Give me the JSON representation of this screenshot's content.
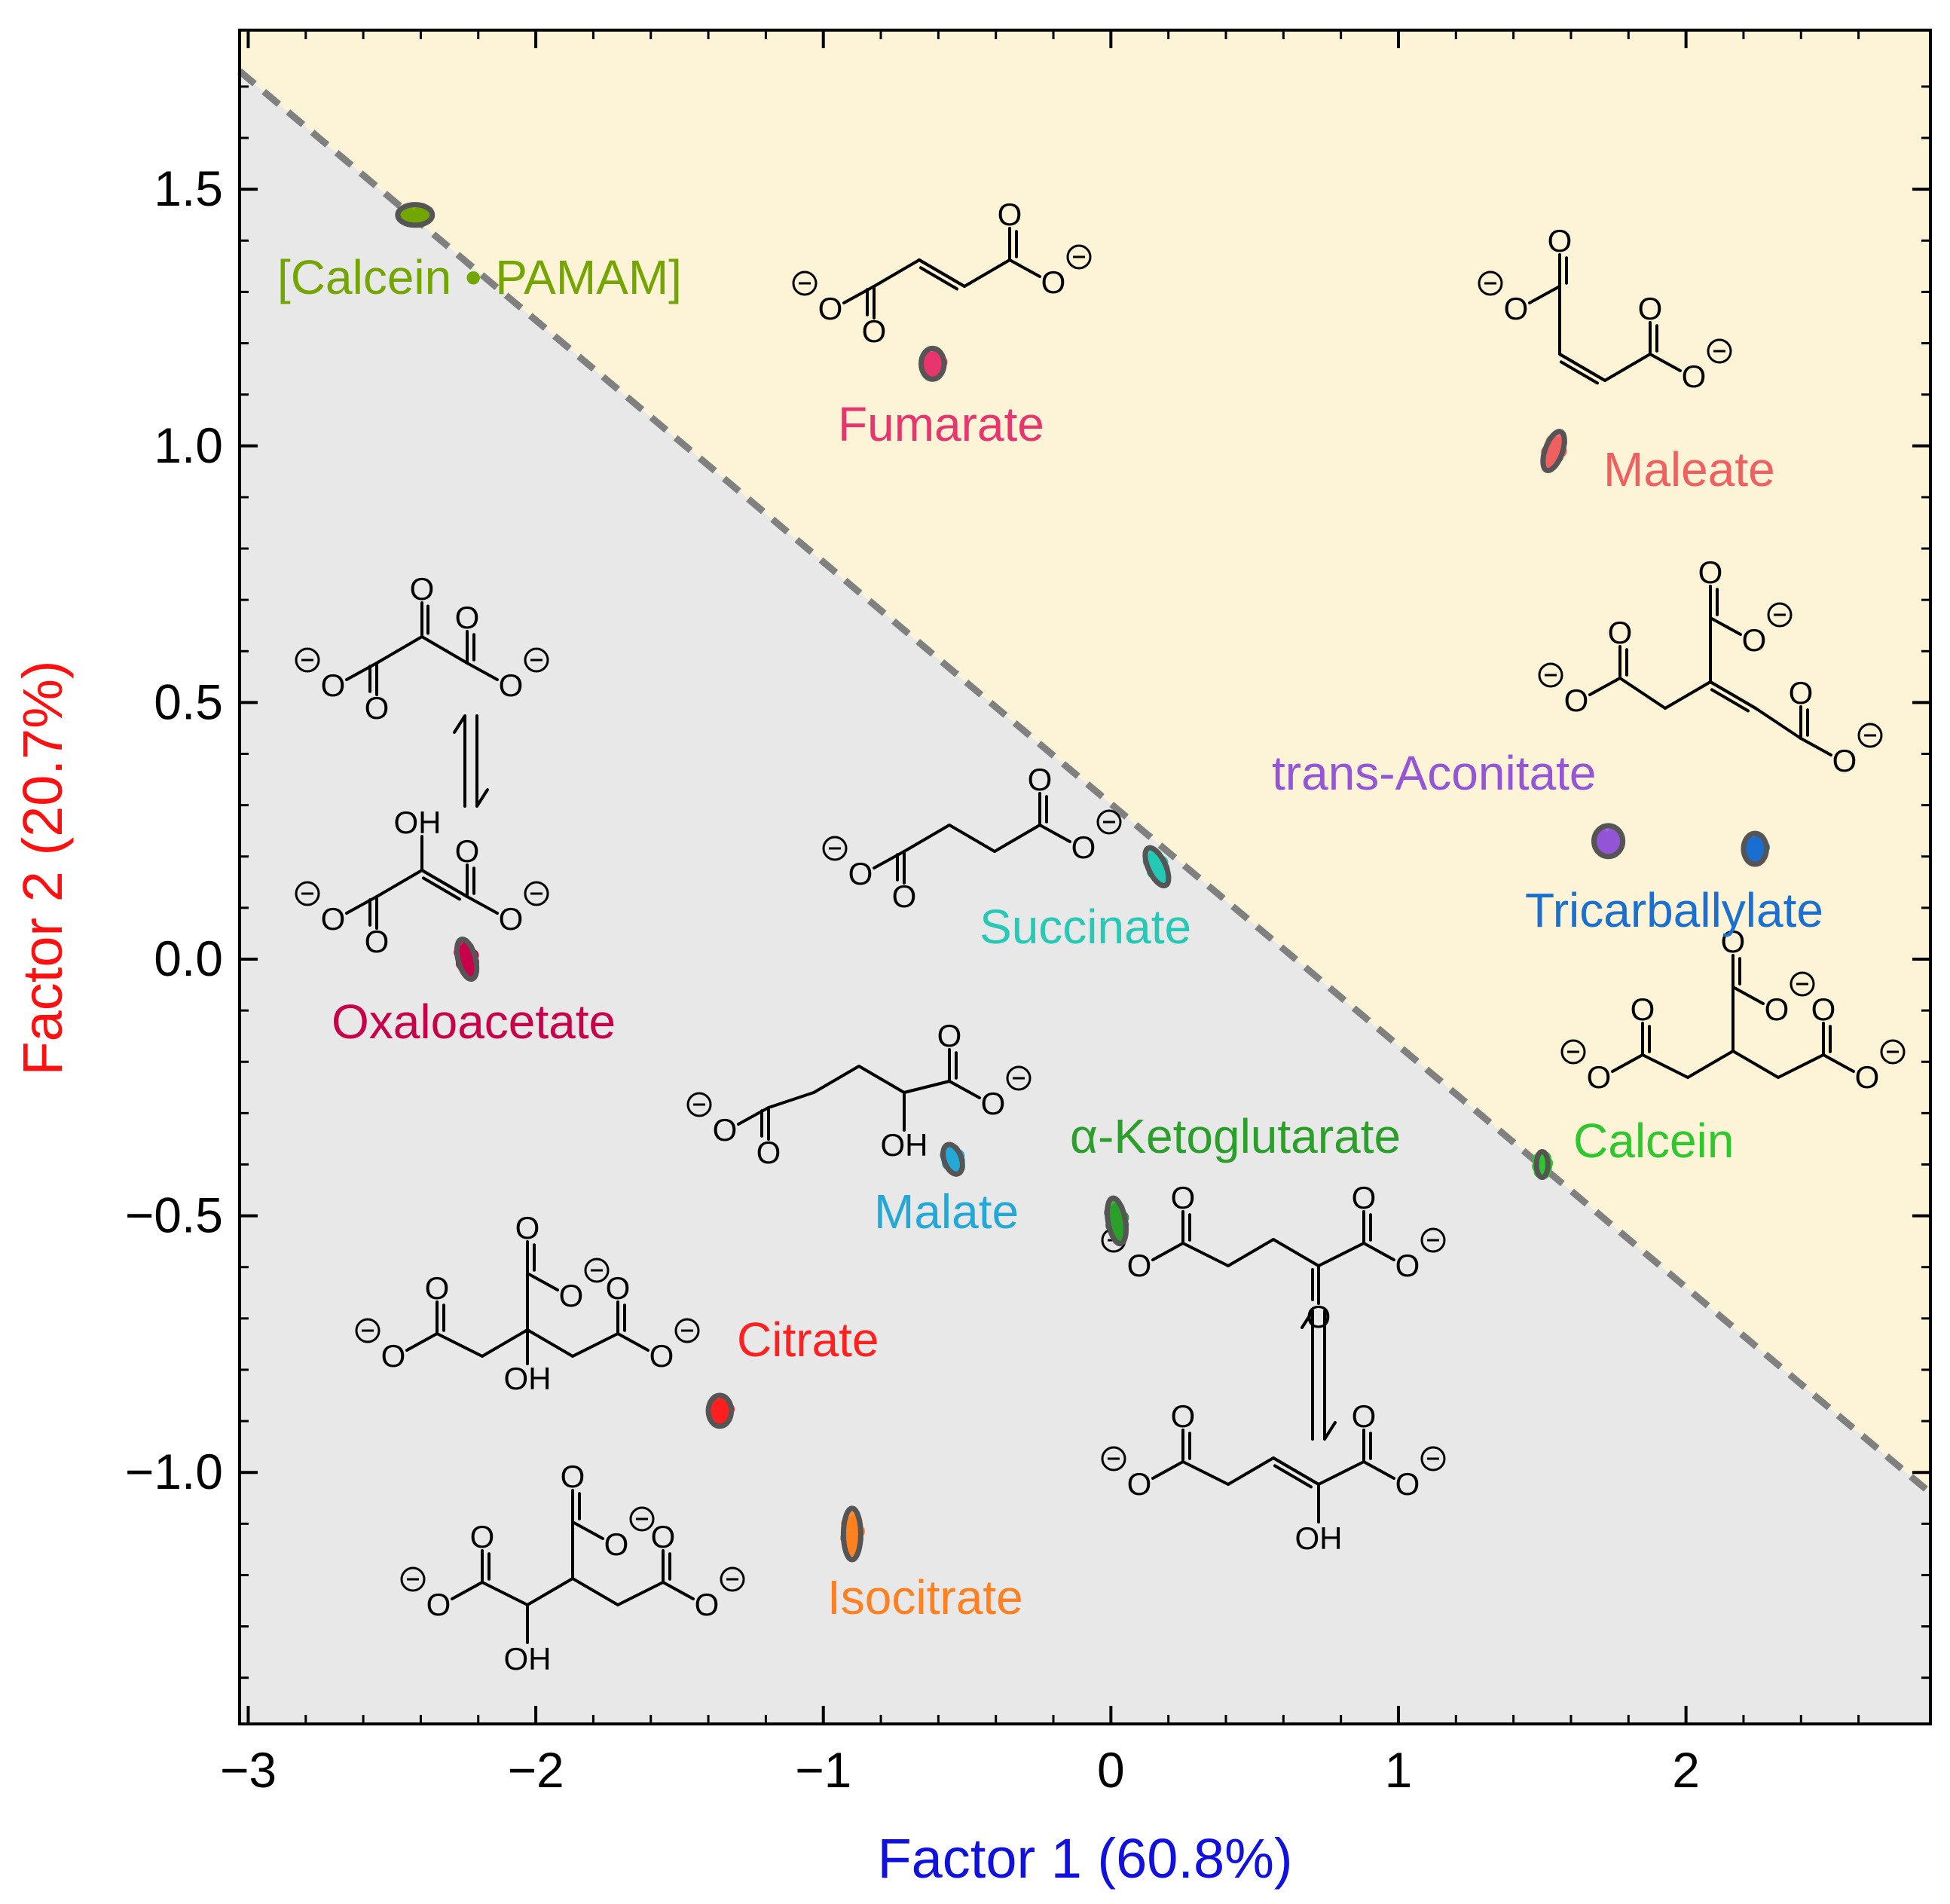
{
  "chart_data": {
    "type": "scatter",
    "xlabel": "Factor 1 (60.8%)",
    "ylabel": "Factor 2 (20.7%)",
    "xlabel_color": "#1010e0",
    "ylabel_color": "#ff1010",
    "xlim": [
      -3.03,
      2.85
    ],
    "ylim": [
      -1.49,
      1.81
    ],
    "x_ticks": [
      -3,
      -2,
      -1,
      0,
      1,
      2
    ],
    "x_tick_labels": [
      "−3",
      "−2",
      "−1",
      "0",
      "1",
      "2"
    ],
    "y_ticks": [
      -1.0,
      -0.5,
      0.0,
      0.5,
      1.0,
      1.5
    ],
    "y_tick_labels": [
      "−1.0",
      "−0.5",
      "0.0",
      "0.5",
      "1.0",
      "1.5"
    ],
    "grid": false,
    "legend": "none",
    "region_colors": {
      "upper": "#fdf3d6",
      "lower": "#e8e8e8",
      "boundary": "#808080"
    },
    "boundary_line": [
      [
        -3.03,
        1.73
      ],
      [
        2.85,
        -1.04
      ]
    ],
    "series": [
      {
        "name": "[Calcein • PAMAM]",
        "color": "#73a600",
        "x": -2.42,
        "y": 1.45,
        "rx": 0.06,
        "ry": 0.02,
        "tilt": 0
      },
      {
        "name": "Fumarate",
        "color": "#e8356e",
        "x": -0.62,
        "y": 1.16,
        "rx": 0.04,
        "ry": 0.03,
        "tilt": 0
      },
      {
        "name": "Maleate",
        "color": "#f06060",
        "x": 1.54,
        "y": 0.99,
        "rx": 0.03,
        "ry": 0.04,
        "tilt": 20
      },
      {
        "name": "trans-Aconitate",
        "color": "#9455d6",
        "x": 1.73,
        "y": 0.23,
        "rx": 0.05,
        "ry": 0.03,
        "tilt": 0
      },
      {
        "name": "Tricarballylate",
        "color": "#1a6fd0",
        "x": 2.24,
        "y": 0.215,
        "rx": 0.04,
        "ry": 0.03,
        "tilt": 0
      },
      {
        "name": "Succinate",
        "color": "#25c9b5",
        "x": 0.16,
        "y": 0.18,
        "rx": 0.03,
        "ry": 0.04,
        "tilt": -25
      },
      {
        "name": "Oxaloacetate",
        "color": "#c8004a",
        "x": -2.24,
        "y": 0.0,
        "rx": 0.03,
        "ry": 0.04,
        "tilt": -15
      },
      {
        "name": "Malate",
        "color": "#23a8d8",
        "x": -0.55,
        "y": -0.39,
        "rx": 0.03,
        "ry": 0.03,
        "tilt": -20
      },
      {
        "name": "α-Ketoglutarate",
        "color": "#2aa02a",
        "x": 0.02,
        "y": -0.51,
        "rx": 0.03,
        "ry": 0.045,
        "tilt": -10
      },
      {
        "name": "Calcein",
        "color": "#2ec82e",
        "x": 1.5,
        "y": -0.4,
        "rx": 0.02,
        "ry": 0.025,
        "tilt": 0
      },
      {
        "name": "Citrate",
        "color": "#ff2020",
        "x": -1.36,
        "y": -0.88,
        "rx": 0.04,
        "ry": 0.03,
        "tilt": 0
      },
      {
        "name": "Isocitrate",
        "color": "#ff8020",
        "x": -0.9,
        "y": -1.12,
        "rx": 0.03,
        "ry": 0.05,
        "tilt": 0
      }
    ]
  },
  "annotations": {
    "calcein_pamam": "[Calcein • PAMAM]",
    "fumarate": "Fumarate",
    "maleate": "Maleate",
    "trans_aconitate": "trans-Aconitate",
    "tricarballylate": "Tricarballylate",
    "succinate": "Succinate",
    "oxaloacetate": "Oxaloacetate",
    "malate": "Malate",
    "ketoglutarate": "α-Ketoglutarate",
    "calcein": "Calcein",
    "citrate": "Citrate",
    "isocitrate": "Isocitrate"
  },
  "structures": {
    "oxygen": "O",
    "hydroxyl": "OH",
    "minus": "−"
  }
}
